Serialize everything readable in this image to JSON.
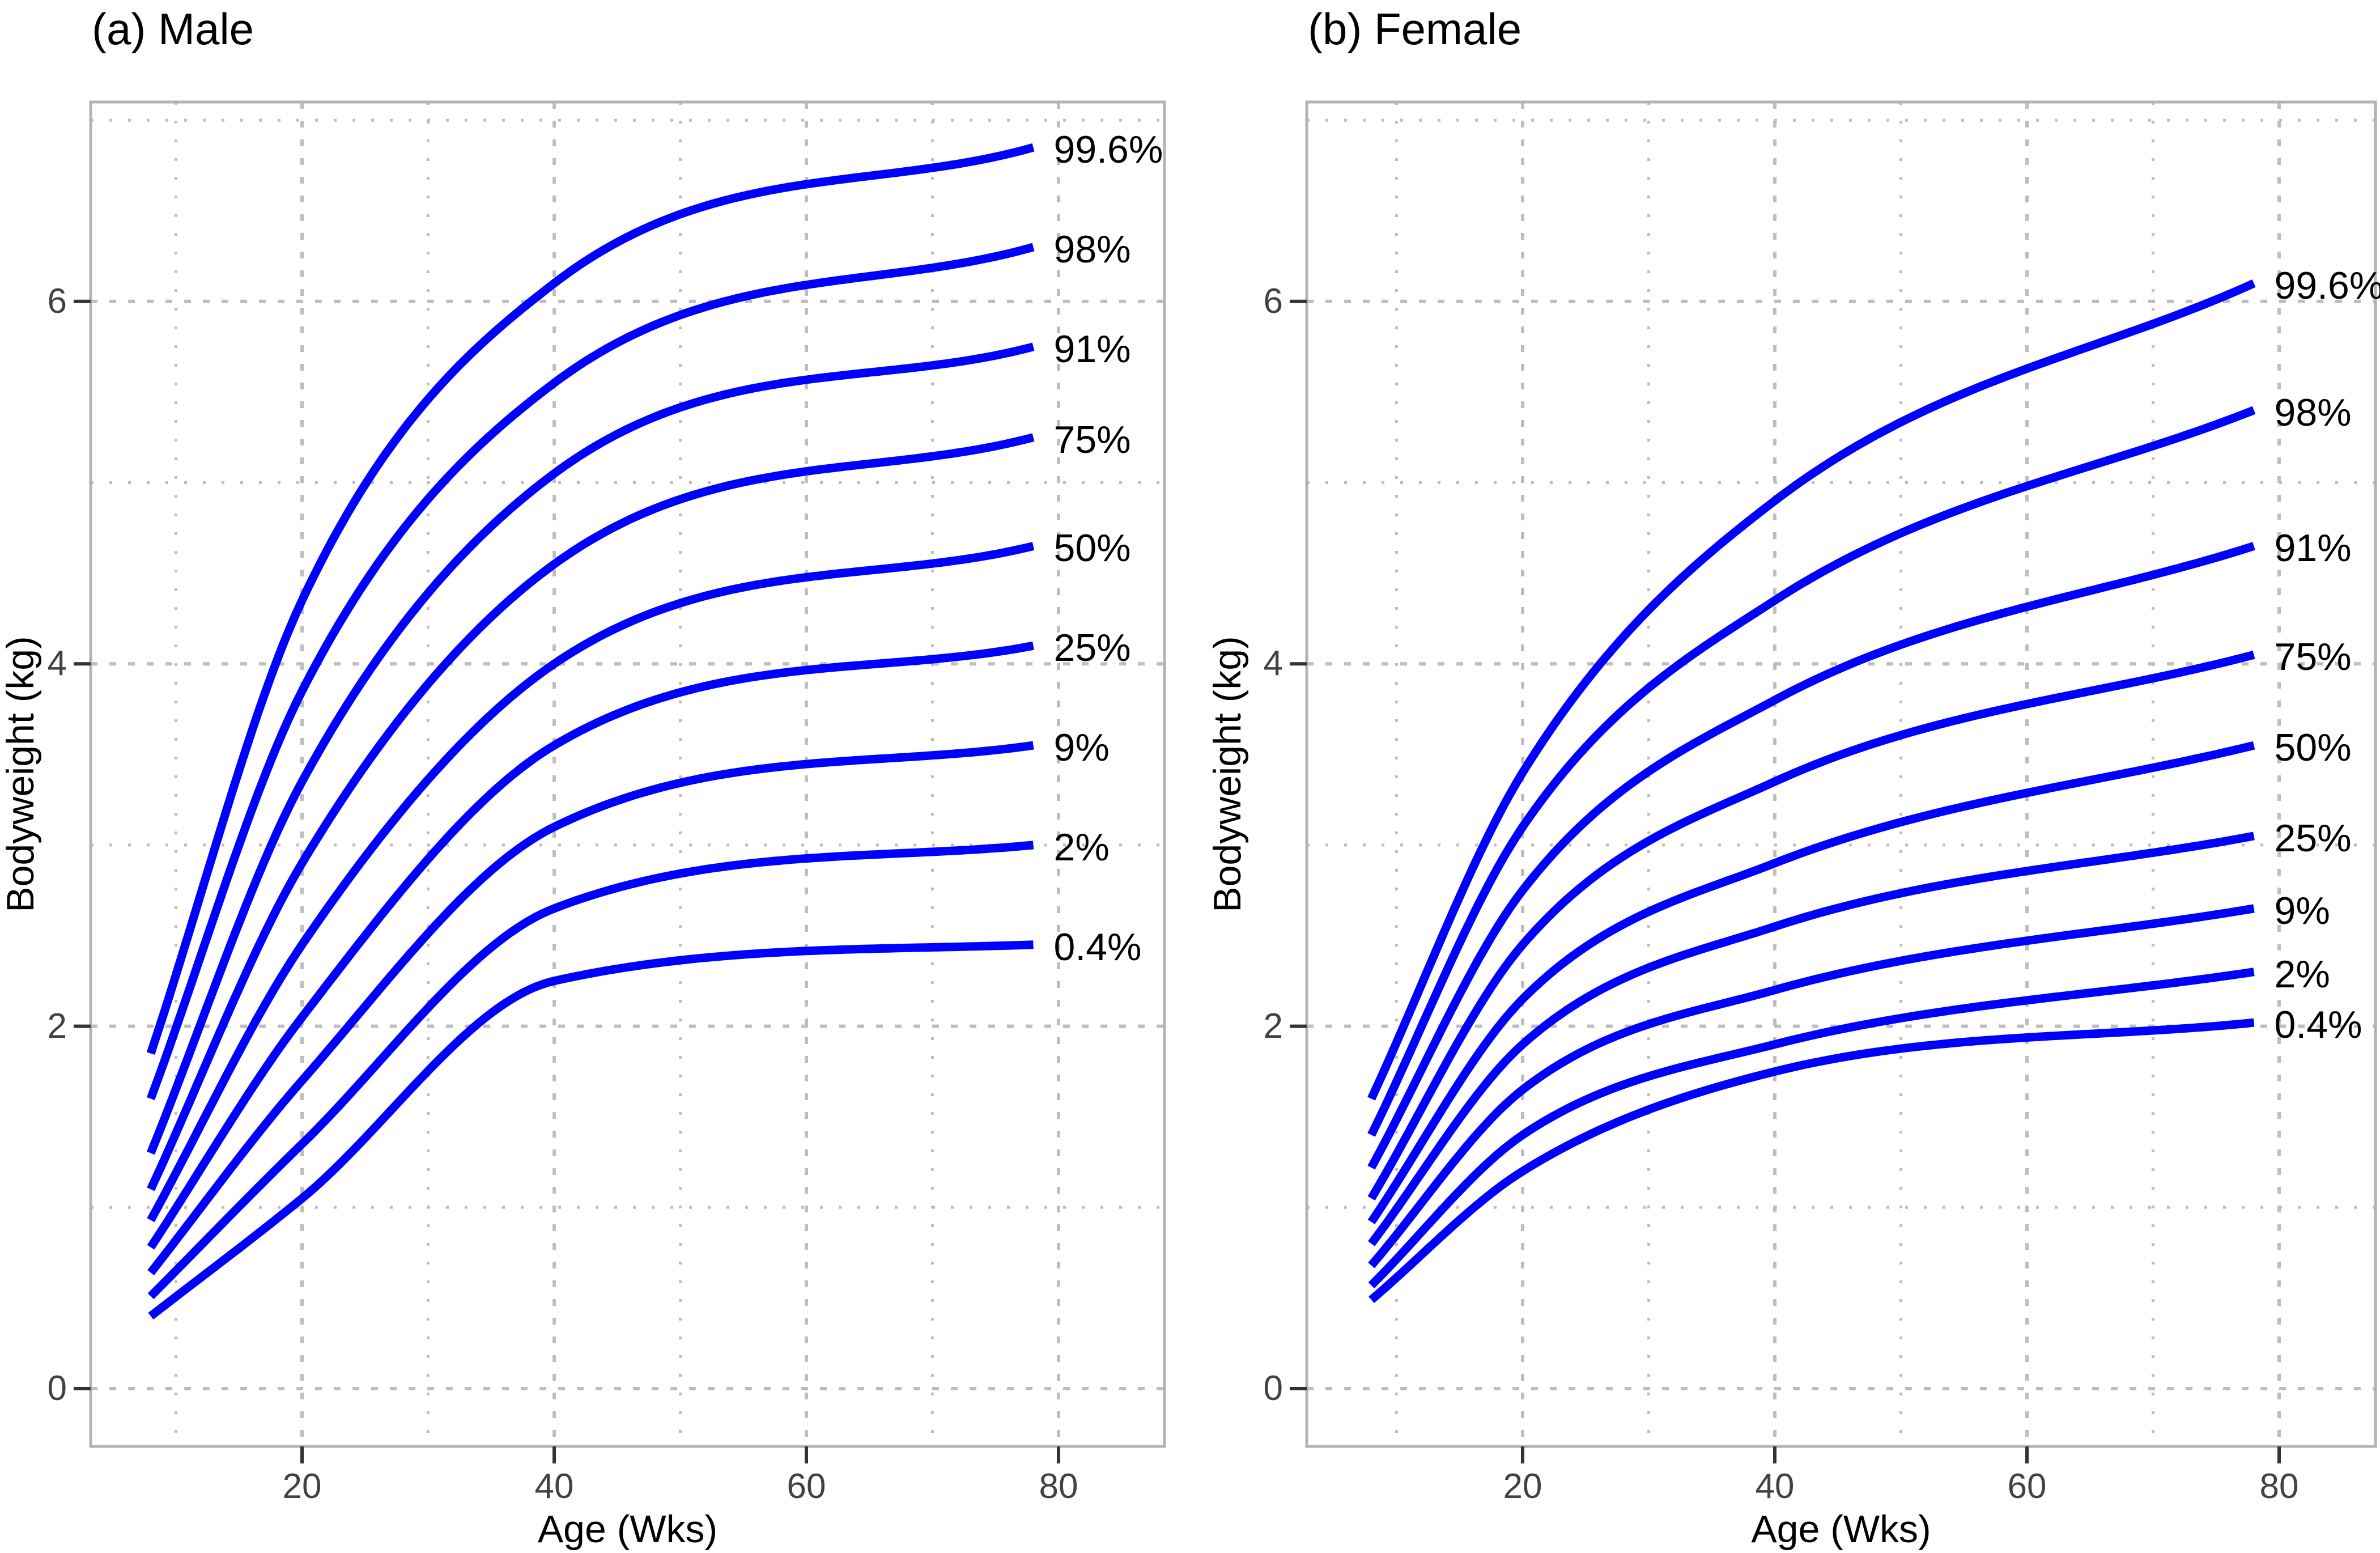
{
  "chart_data": [
    {
      "type": "line",
      "panel": "a",
      "title": "(a) Male",
      "xlabel": "Age (Wks)",
      "ylabel": "Bodyweight (kg)",
      "x_ticks": [
        20,
        40,
        60,
        80
      ],
      "x_tick_labels": [
        "20",
        "40",
        "60",
        "80"
      ],
      "y_ticks": [
        0,
        2,
        4,
        6
      ],
      "y_tick_labels": [
        "0",
        "2",
        "4",
        "6"
      ],
      "x_minor_ticks": [
        10,
        30,
        50,
        70
      ],
      "y_minor_ticks": [
        1,
        3,
        5,
        7
      ],
      "xlim": [
        3.2,
        88.5
      ],
      "ylim": [
        -0.32,
        7.1
      ],
      "grid": "major-dashed and minor-dotted, gray",
      "legend_position": "labels-at-line-ends",
      "line_color": "#0000ff",
      "x": [
        8,
        20,
        40,
        78
      ],
      "series": [
        {
          "name": "99.6%",
          "values": [
            1.85,
            4.35,
            6.1,
            6.85
          ]
        },
        {
          "name": "98%",
          "values": [
            1.6,
            3.85,
            5.55,
            6.3
          ]
        },
        {
          "name": "91%",
          "values": [
            1.3,
            3.35,
            5.05,
            5.75
          ]
        },
        {
          "name": "75%",
          "values": [
            1.1,
            2.9,
            4.55,
            5.25
          ]
        },
        {
          "name": "50%",
          "values": [
            0.93,
            2.45,
            4.0,
            4.65
          ]
        },
        {
          "name": "25%",
          "values": [
            0.78,
            2.05,
            3.55,
            4.1
          ]
        },
        {
          "name": "9%",
          "values": [
            0.64,
            1.7,
            3.1,
            3.55
          ]
        },
        {
          "name": "2%",
          "values": [
            0.51,
            1.35,
            2.65,
            3.0
          ]
        },
        {
          "name": "0.4%",
          "values": [
            0.4,
            1.05,
            2.25,
            2.45
          ]
        }
      ]
    },
    {
      "type": "line",
      "panel": "b",
      "title": "(b) Female",
      "xlabel": "Age (Wks)",
      "ylabel": "Bodyweight (kg)",
      "x_ticks": [
        20,
        40,
        60,
        80
      ],
      "x_tick_labels": [
        "20",
        "40",
        "60",
        "80"
      ],
      "y_ticks": [
        0,
        2,
        4,
        6
      ],
      "y_tick_labels": [
        "0",
        "2",
        "4",
        "6"
      ],
      "x_minor_ticks": [
        10,
        30,
        50,
        70
      ],
      "y_minor_ticks": [
        1,
        3,
        5,
        7
      ],
      "xlim": [
        2.9,
        87.6
      ],
      "ylim": [
        -0.32,
        7.1
      ],
      "grid": "major-dashed and minor-dotted, gray",
      "legend_position": "labels-at-line-ends",
      "line_color": "#0000ff",
      "x": [
        8,
        20,
        40,
        78
      ],
      "series": [
        {
          "name": "99.6%",
          "values": [
            1.6,
            3.4,
            4.9,
            6.1
          ]
        },
        {
          "name": "98%",
          "values": [
            1.4,
            3.1,
            4.35,
            5.4
          ]
        },
        {
          "name": "91%",
          "values": [
            1.22,
            2.75,
            3.8,
            4.65
          ]
        },
        {
          "name": "75%",
          "values": [
            1.05,
            2.45,
            3.35,
            4.05
          ]
        },
        {
          "name": "50%",
          "values": [
            0.92,
            2.15,
            2.9,
            3.55
          ]
        },
        {
          "name": "25%",
          "values": [
            0.8,
            1.9,
            2.55,
            3.05
          ]
        },
        {
          "name": "9%",
          "values": [
            0.68,
            1.65,
            2.2,
            2.65
          ]
        },
        {
          "name": "2%",
          "values": [
            0.57,
            1.4,
            1.9,
            2.3
          ]
        },
        {
          "name": "0.4%",
          "values": [
            0.49,
            1.2,
            1.75,
            2.02
          ]
        }
      ]
    }
  ],
  "colors": {
    "curve": "#0000ff",
    "grid": "#bebebe",
    "panel_border": "#b3b3b3",
    "tick_mark": "#333333",
    "tick_label": "#424242",
    "text": "#000000",
    "background": "#ffffff"
  }
}
